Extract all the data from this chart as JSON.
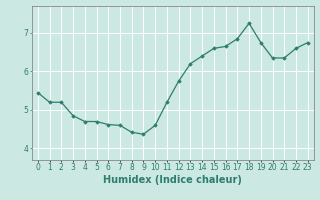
{
  "x": [
    0,
    1,
    2,
    3,
    4,
    5,
    6,
    7,
    8,
    9,
    10,
    11,
    12,
    13,
    14,
    15,
    16,
    17,
    18,
    19,
    20,
    21,
    22,
    23
  ],
  "y": [
    5.45,
    5.2,
    5.2,
    4.85,
    4.7,
    4.7,
    4.62,
    4.6,
    4.42,
    4.37,
    4.6,
    5.2,
    5.75,
    6.2,
    6.4,
    6.6,
    6.65,
    6.85,
    7.25,
    6.75,
    6.35,
    6.35,
    6.6,
    6.75
  ],
  "line_color": "#2e7d6e",
  "marker": "D",
  "markersize": 1.8,
  "linewidth": 0.9,
  "xlabel": "Humidex (Indice chaleur)",
  "xlabel_fontsize": 7,
  "xlim": [
    -0.5,
    23.5
  ],
  "ylim": [
    3.7,
    7.7
  ],
  "yticks": [
    4,
    5,
    6,
    7
  ],
  "xtick_labels": [
    "0",
    "1",
    "2",
    "3",
    "4",
    "5",
    "6",
    "7",
    "8",
    "9",
    "10",
    "11",
    "12",
    "13",
    "14",
    "15",
    "16",
    "17",
    "18",
    "19",
    "20",
    "21",
    "22",
    "23"
  ],
  "bg_color": "#cce8e2",
  "grid_color": "#ffffff",
  "tick_color": "#2e7d6e",
  "tick_fontsize": 5.5,
  "fig_bg": "#cce8e2",
  "spine_color": "#888888"
}
